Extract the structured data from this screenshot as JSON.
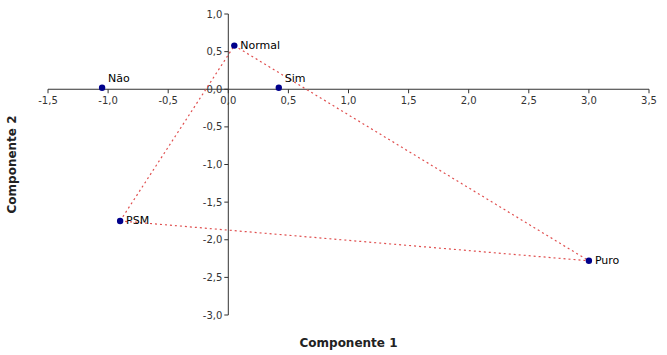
{
  "chart_data": {
    "type": "scatter",
    "xlabel": "Componente 1",
    "ylabel": "Componente 2",
    "grid": false,
    "series": [
      {
        "type": "scatter",
        "color": "#00008B",
        "marker": "circle",
        "x": [
          -1.05,
          0.42,
          0.05,
          -0.9,
          3.0
        ],
        "values": [
          0.02,
          0.02,
          0.58,
          -1.75,
          -2.28
        ],
        "labels": [
          "Não",
          "Sim",
          "Normal",
          "PSM",
          "Puro"
        ]
      },
      {
        "type": "line",
        "color": "#E05050",
        "line_style": "dotted",
        "x": [
          -0.9,
          0.05
        ],
        "values": [
          -1.75,
          0.58
        ]
      },
      {
        "type": "line",
        "color": "#E05050",
        "line_style": "dotted",
        "x": [
          -0.9,
          3.0
        ],
        "values": [
          -1.75,
          -2.28
        ]
      },
      {
        "type": "line",
        "color": "#E05050",
        "line_style": "dotted",
        "x": [
          0.05,
          3.0
        ],
        "values": [
          0.58,
          -2.28
        ]
      }
    ],
    "xlim": [
      -1.5,
      3.5
    ],
    "ylim": [
      -3.0,
      1.0
    ],
    "xticks": [
      {
        "value": -1.5,
        "label": "-1,5"
      },
      {
        "value": -1.0,
        "label": "-1,0"
      },
      {
        "value": -0.5,
        "label": "-0,5"
      },
      {
        "value": 0.0,
        "label": "0,0"
      },
      {
        "value": 0.5,
        "label": "0,5"
      },
      {
        "value": 1.0,
        "label": "1,0"
      },
      {
        "value": 1.5,
        "label": "1,5"
      },
      {
        "value": 2.0,
        "label": "2,0"
      },
      {
        "value": 2.5,
        "label": "2,5"
      },
      {
        "value": 3.0,
        "label": "3,0"
      },
      {
        "value": 3.5,
        "label": "3,5"
      }
    ],
    "yticks": [
      {
        "value": -3.0,
        "label": "-3,0"
      },
      {
        "value": -2.5,
        "label": "-2,5"
      },
      {
        "value": -2.0,
        "label": "-2,0"
      },
      {
        "value": -1.5,
        "label": "-1,5"
      },
      {
        "value": -1.0,
        "label": "-1,0"
      },
      {
        "value": -0.5,
        "label": "-0,5"
      },
      {
        "value": 0.0,
        "label": "0,0"
      },
      {
        "value": 0.5,
        "label": "0,5"
      },
      {
        "value": 1.0,
        "label": "1,0"
      }
    ]
  }
}
